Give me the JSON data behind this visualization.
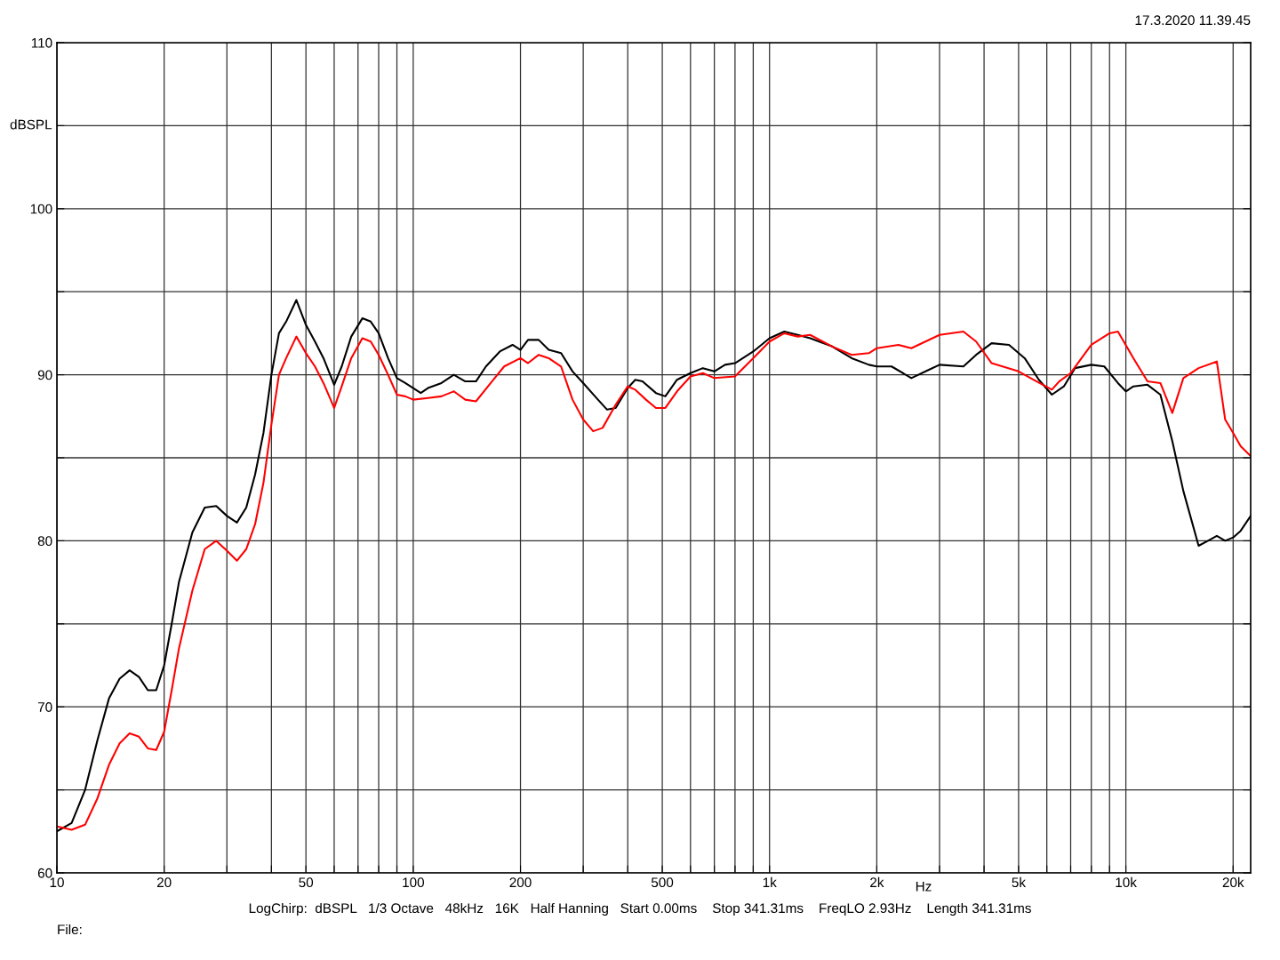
{
  "chart_data": {
    "type": "line",
    "xlabel": "Hz",
    "ylabel": "dBSPL",
    "log": "x",
    "grid": true,
    "marker": "none",
    "line_style": "solid",
    "xlim": [
      10,
      22400
    ],
    "ylim": [
      60,
      110
    ],
    "xticks": [
      10,
      20,
      {
        "value": 30,
        "label": null
      },
      {
        "value": 40,
        "label": null
      },
      50,
      {
        "value": 60,
        "label": null
      },
      {
        "value": 70,
        "label": null
      },
      {
        "value": 80,
        "label": null
      },
      {
        "value": 90,
        "label": null
      },
      100,
      200,
      {
        "value": 300,
        "label": null
      },
      {
        "value": 400,
        "label": null
      },
      500,
      {
        "value": 600,
        "label": null
      },
      {
        "value": 700,
        "label": null
      },
      {
        "value": 800,
        "label": null
      },
      {
        "value": 900,
        "label": null
      },
      {
        "value": 1000,
        "label": "1k"
      },
      {
        "value": 2000,
        "label": "2k"
      },
      {
        "value": 3000,
        "label": null
      },
      {
        "value": 4000,
        "label": null
      },
      {
        "value": 5000,
        "label": "5k"
      },
      {
        "value": 6000,
        "label": null
      },
      {
        "value": 7000,
        "label": null
      },
      {
        "value": 8000,
        "label": null
      },
      {
        "value": 9000,
        "label": null
      },
      {
        "value": 10000,
        "label": "10k"
      },
      {
        "value": 20000,
        "label": "20k"
      }
    ],
    "yticks": [
      60,
      {
        "value": 65,
        "label": null
      },
      70,
      {
        "value": 75,
        "label": null
      },
      80,
      {
        "value": 85,
        "label": null
      },
      90,
      {
        "value": 95,
        "label": null
      },
      100,
      {
        "value": 105,
        "label": null
      },
      110
    ],
    "annotations": [
      "17.3.2020 11.39.45",
      "LogChirp:  dBSPL   1/3 Octave   48kHz   16K   Half Hanning   Start 0.00ms    Stop 341.31ms    FreqLO 2.93Hz    Length 341.31ms",
      "File:"
    ],
    "series": [
      {
        "color": "#000000",
        "x": [
          10,
          11,
          12,
          13,
          14,
          15,
          16,
          17,
          18,
          19,
          20,
          21,
          22,
          24,
          26,
          28,
          30,
          32,
          34,
          36,
          38,
          40,
          42,
          44,
          47,
          50,
          53,
          56,
          60,
          63,
          67,
          72,
          76,
          80,
          85,
          90,
          95,
          100,
          105,
          110,
          120,
          130,
          140,
          150,
          160,
          175,
          190,
          200,
          210,
          225,
          240,
          260,
          280,
          300,
          330,
          350,
          370,
          400,
          420,
          440,
          480,
          510,
          550,
          600,
          650,
          700,
          750,
          800,
          900,
          1000,
          1100,
          1200,
          1300,
          1500,
          1700,
          1900,
          2000,
          2200,
          2500,
          2800,
          3000,
          3500,
          3800,
          4200,
          4700,
          5200,
          5700,
          6200,
          6700,
          7200,
          8000,
          8700,
          9500,
          10000,
          10500,
          11500,
          12500,
          13500,
          14500,
          16000,
          17000,
          18000,
          19000,
          20000,
          21000,
          22400
        ],
        "values": [
          62.5,
          63,
          65,
          68,
          70.5,
          71.7,
          72.2,
          71.8,
          71,
          71,
          72.5,
          75,
          77.5,
          80.5,
          82,
          82.1,
          81.5,
          81.1,
          82,
          84,
          86.5,
          90,
          92.5,
          93.2,
          94.5,
          93,
          92,
          91,
          89.4,
          90.5,
          92.3,
          93.4,
          93.2,
          92.5,
          91,
          89.8,
          89.5,
          89.2,
          88.9,
          89.2,
          89.5,
          90,
          89.6,
          89.6,
          90.5,
          91.4,
          91.8,
          91.5,
          92.1,
          92.1,
          91.5,
          91.3,
          90.2,
          89.5,
          88.5,
          87.9,
          88,
          89.2,
          89.7,
          89.6,
          88.9,
          88.7,
          89.7,
          90.1,
          90.4,
          90.2,
          90.6,
          90.7,
          91.4,
          92.2,
          92.6,
          92.4,
          92.2,
          91.7,
          91,
          90.6,
          90.5,
          90.5,
          89.8,
          90.3,
          90.6,
          90.5,
          91.2,
          91.9,
          91.8,
          91,
          89.7,
          88.8,
          89.3,
          90.4,
          90.6,
          90.5,
          89.5,
          89,
          89.3,
          89.4,
          88.8,
          86,
          83,
          79.7,
          80,
          80.3,
          80,
          80.2,
          80.6,
          81.5
        ]
      },
      {
        "color": "#ff0000",
        "x": [
          10,
          11,
          12,
          13,
          14,
          15,
          16,
          17,
          18,
          19,
          20,
          21,
          22,
          24,
          26,
          28,
          30,
          32,
          34,
          36,
          38,
          40,
          42,
          44,
          47,
          50,
          53,
          56,
          60,
          63,
          67,
          72,
          76,
          80,
          85,
          90,
          95,
          100,
          110,
          120,
          130,
          140,
          150,
          165,
          180,
          200,
          210,
          225,
          240,
          260,
          280,
          300,
          320,
          340,
          370,
          400,
          420,
          450,
          480,
          510,
          550,
          600,
          650,
          700,
          800,
          900,
          1000,
          1100,
          1200,
          1300,
          1500,
          1700,
          1900,
          2000,
          2300,
          2500,
          3000,
          3500,
          3800,
          4200,
          5000,
          5500,
          6200,
          6500,
          7000,
          8000,
          9000,
          9500,
          10500,
          11500,
          12500,
          13500,
          14500,
          16000,
          18000,
          19000,
          20000,
          21000,
          22400
        ],
        "values": [
          62.8,
          62.6,
          62.9,
          64.5,
          66.5,
          67.8,
          68.4,
          68.2,
          67.5,
          67.4,
          68.5,
          71,
          73.5,
          77,
          79.5,
          80,
          79.4,
          78.8,
          79.5,
          81,
          83.5,
          87,
          90,
          91,
          92.3,
          91.3,
          90.5,
          89.5,
          88,
          89.3,
          91,
          92.2,
          92,
          91.2,
          90,
          88.8,
          88.7,
          88.5,
          88.6,
          88.7,
          89,
          88.5,
          88.4,
          89.5,
          90.5,
          91,
          90.7,
          91.2,
          91,
          90.5,
          88.5,
          87.3,
          86.6,
          86.8,
          88.2,
          89.3,
          89.1,
          88.5,
          88,
          88,
          89,
          89.9,
          90.1,
          89.8,
          89.9,
          91,
          92,
          92.5,
          92.3,
          92.4,
          91.7,
          91.2,
          91.3,
          91.6,
          91.8,
          91.6,
          92.4,
          92.6,
          92,
          90.7,
          90.2,
          89.7,
          89.1,
          89.6,
          90.1,
          91.8,
          92.5,
          92.6,
          91,
          89.6,
          89.5,
          87.7,
          89.8,
          90.4,
          90.8,
          87.3,
          86.5,
          85.7,
          85.1
        ]
      }
    ]
  }
}
